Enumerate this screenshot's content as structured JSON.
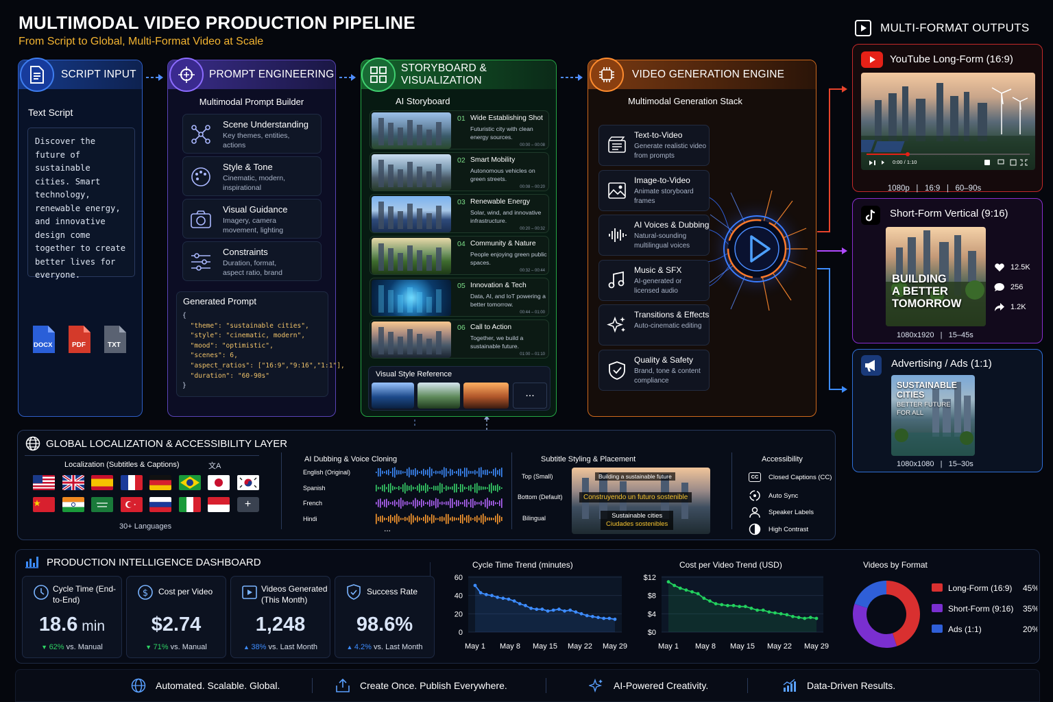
{
  "header": {
    "title": "MULTIMODAL VIDEO PRODUCTION PIPELINE",
    "subtitle": "From Script to Global, Multi-Format Video at Scale"
  },
  "script_input": {
    "title": "SCRIPT INPUT",
    "label": "Text Script",
    "text": "Discover the future of sustainable cities. Smart technology, renewable energy, and innovative design come together to create better lives for everyone.",
    "files": [
      "DOCX",
      "PDF",
      "TXT"
    ]
  },
  "prompt_engineering": {
    "title": "PROMPT ENGINEERING",
    "subtitle": "Multimodal Prompt Builder",
    "items": [
      {
        "title": "Scene Understanding",
        "desc": "Key themes, entities, actions"
      },
      {
        "title": "Style & Tone",
        "desc": "Cinematic, modern, inspirational"
      },
      {
        "title": "Visual Guidance",
        "desc": "Imagery, camera movement, lighting"
      },
      {
        "title": "Constraints",
        "desc": "Duration, format, aspect ratio, brand"
      }
    ],
    "generated_label": "Generated Prompt",
    "code": [
      "{",
      "  \"theme\": \"sustainable cities\",",
      "  \"style\": \"cinematic, modern\",",
      "  \"mood\": \"optimistic\",",
      "  \"scenes\": 6,",
      "  \"aspect_ratios\": [\"16:9\",\"9:16\",\"1:1\"],",
      "  \"duration\": \"60-90s\"",
      "}"
    ]
  },
  "storyboard": {
    "title": "STORYBOARD & VISUALIZATION",
    "subtitle": "AI Storyboard",
    "shots": [
      {
        "num": "01",
        "title": "Wide Establishing Shot",
        "desc": "Futuristic city with clean energy sources.",
        "time": "00:00 – 00:08"
      },
      {
        "num": "02",
        "title": "Smart Mobility",
        "desc": "Autonomous vehicles on green streets.",
        "time": "00:08 – 00:20"
      },
      {
        "num": "03",
        "title": "Renewable Energy",
        "desc": "Solar, wind, and innovative infrastructure.",
        "time": "00:20 – 00:32"
      },
      {
        "num": "04",
        "title": "Community & Nature",
        "desc": "People enjoying green public spaces.",
        "time": "00:32 – 00:44"
      },
      {
        "num": "05",
        "title": "Innovation & Tech",
        "desc": "Data, AI, and IoT powering a better tomorrow.",
        "time": "00:44 – 01:00"
      },
      {
        "num": "06",
        "title": "Call to Action",
        "desc": "Together, we build a sustainable future.",
        "time": "01:00 – 01:10"
      }
    ],
    "style_ref_label": "Visual Style Reference",
    "more": "..."
  },
  "engine": {
    "title": "VIDEO GENERATION ENGINE",
    "subtitle": "Multimodal Generation Stack",
    "items": [
      {
        "title": "Text-to-Video",
        "desc": "Generate realistic video from prompts"
      },
      {
        "title": "Image-to-Video",
        "desc": "Animate storyboard frames"
      },
      {
        "title": "AI Voices & Dubbing",
        "desc": "Natural-sounding multilingual voices"
      },
      {
        "title": "Music & SFX",
        "desc": "AI-generated or licensed audio"
      },
      {
        "title": "Transitions & Effects",
        "desc": "Auto-cinematic editing"
      },
      {
        "title": "Quality & Safety",
        "desc": "Brand, tone & content compliance"
      }
    ]
  },
  "outputs": {
    "title": "MULTI-FORMAT OUTPUTS",
    "youtube": {
      "title": "YouTube Long-Form (16:9)",
      "time": "0:00 / 1:10",
      "specs": [
        "1080p",
        "16:9",
        "60–90s"
      ]
    },
    "short": {
      "title": "Short-Form Vertical (9:16)",
      "overlay": [
        "BUILDING",
        "A BETTER",
        "TOMORROW"
      ],
      "likes": "12.5K",
      "comments": "256",
      "shares": "1.2K",
      "specs": [
        "1080x1920",
        "15–45s"
      ]
    },
    "ads": {
      "title": "Advertising / Ads (1:1)",
      "overlay_main": [
        "SUSTAINABLE",
        "CITIES"
      ],
      "overlay_sub": [
        "BETTER FUTURE",
        "FOR ALL"
      ],
      "specs": [
        "1080x1080",
        "15–30s"
      ]
    }
  },
  "localization": {
    "title": "GLOBAL LOCALIZATION & ACCESSIBILITY LAYER",
    "subs_title": "Localization (Subtitles & Captions)",
    "languages": "30+ Languages",
    "flags": [
      "us",
      "uk",
      "es",
      "fr",
      "de",
      "br",
      "jp",
      "kr",
      "cn",
      "in",
      "sa",
      "tr",
      "ru",
      "it",
      "id"
    ],
    "dubbing_title": "AI Dubbing & Voice Cloning",
    "dubbing": [
      {
        "lang": "English (Original)",
        "color": "#3d8cff"
      },
      {
        "lang": "Spanish",
        "color": "#38d46a"
      },
      {
        "lang": "French",
        "color": "#b566ff"
      },
      {
        "lang": "Hindi",
        "color": "#ff9a2e"
      }
    ],
    "dub_more": "...",
    "subtitle_title": "Subtitle Styling & Placement",
    "placements": [
      "Top (Small)",
      "Bottom (Default)",
      "Bilingual"
    ],
    "sub_top": "Building a sustainable future",
    "sub_bottom": "Construyendo un futuro sostenible",
    "sub_bi1": "Sustainable cities",
    "sub_bi2": "Ciudades sostenibles",
    "access_title": "Accessibility",
    "access": [
      "Closed Captions (CC)",
      "Auto Sync",
      "Speaker Labels",
      "High Contrast"
    ],
    "cc": "CC"
  },
  "dashboard": {
    "title": "PRODUCTION INTELLIGENCE DASHBOARD",
    "kpis": [
      {
        "label": "Cycle Time (End-to-End)",
        "value": "18.6",
        "unit": " min",
        "delta": "62%",
        "delta_text": " vs. Manual",
        "dir": "down"
      },
      {
        "label": "Cost per Video",
        "value": "$2.74",
        "unit": "",
        "delta": "71%",
        "delta_text": " vs. Manual",
        "dir": "down"
      },
      {
        "label": "Videos Generated (This Month)",
        "value": "1,248",
        "unit": "",
        "delta": "38%",
        "delta_text": " vs. Last Month",
        "dir": "up"
      },
      {
        "label": "Success Rate",
        "value": "98.6%",
        "unit": "",
        "delta": "4.2%",
        "delta_text": " vs. Last Month",
        "dir": "up"
      }
    ]
  },
  "chart_data": [
    {
      "type": "line",
      "title": "Cycle Time Trend (minutes)",
      "color": "#3d8cff",
      "x_ticks": [
        "May 1",
        "May 8",
        "May 15",
        "May 22",
        "May 29"
      ],
      "y_ticks": [
        "60",
        "40",
        "20",
        "0"
      ],
      "ylim": [
        0,
        60
      ],
      "values": [
        51,
        43,
        41,
        40,
        38,
        37,
        36,
        34,
        31,
        29,
        26,
        25,
        25,
        23,
        24,
        25,
        23,
        24,
        22,
        20,
        18,
        17,
        16,
        15,
        15,
        14
      ],
      "grid": true
    },
    {
      "type": "line",
      "title": "Cost per Video Trend (USD)",
      "color": "#22d15e",
      "x_ticks": [
        "May 1",
        "May 8",
        "May 15",
        "May 22",
        "May 29"
      ],
      "y_ticks": [
        "$12",
        "$8",
        "$4",
        "$0"
      ],
      "ylim": [
        0,
        12
      ],
      "values": [
        11,
        10.2,
        9.6,
        9.2,
        8.8,
        8.4,
        7.4,
        6.8,
        6.2,
        6,
        5.8,
        5.8,
        5.6,
        5.6,
        5.2,
        4.8,
        4.8,
        4.4,
        4.2,
        4,
        3.8,
        3.4,
        3.2,
        3.0,
        3.2,
        3.0
      ],
      "grid": true
    },
    {
      "type": "pie",
      "title": "Videos by Format",
      "categories": [
        "Long-Form (16:9)",
        "Short-Form (9:16)",
        "Ads (1:1)"
      ],
      "values": [
        45,
        35,
        20
      ],
      "labels": [
        "45%",
        "35%",
        "20%"
      ],
      "colors": [
        "#d93030",
        "#7a2fd0",
        "#2f5fd8"
      ],
      "legend": "right"
    }
  ],
  "footer": [
    "Automated. Scalable. Global.",
    "Create Once. Publish Everywhere.",
    "AI-Powered Creativity.",
    "Data-Driven Results."
  ]
}
